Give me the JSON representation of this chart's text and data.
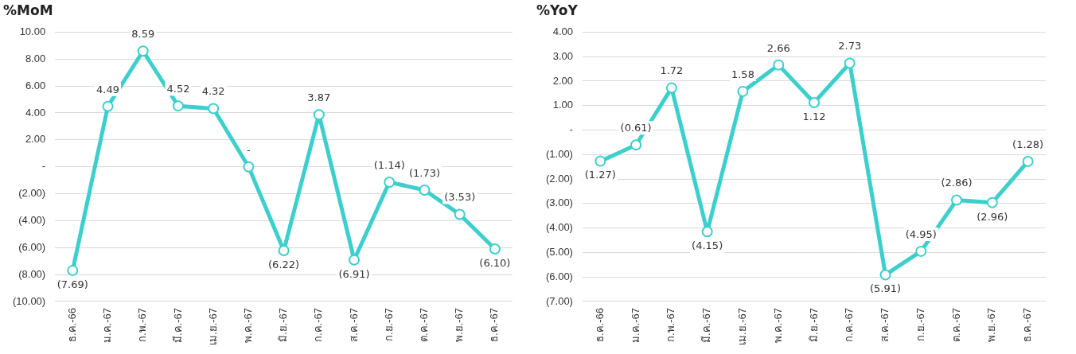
{
  "chart_data": [
    {
      "type": "line",
      "title": "%MoM",
      "categories": [
        "ธ.ค.-66",
        "ม.ค.-67",
        "ก.พ.-67",
        "มี.ค.-67",
        "เม.ย.-67",
        "พ.ค.-67",
        "มิ.ย.-67",
        "ก.ค.-67",
        "ส.ค.-67",
        "ก.ย.-67",
        "ต.ค.-67",
        "พ.ย.-67",
        "ธ.ค.-67"
      ],
      "series": [
        {
          "color": "#3ccfcc",
          "values": [
            -7.69,
            4.49,
            8.59,
            4.52,
            4.32,
            0,
            -6.22,
            3.87,
            -6.91,
            -1.14,
            -1.73,
            -3.53,
            -6.1
          ],
          "value_labels": [
            "(7.69)",
            "4.49",
            "8.59",
            "4.52",
            "4.32",
            "-",
            "(6.22)",
            "3.87",
            "(6.91)",
            "(1.14)",
            "(1.73)",
            "(3.53)",
            "(6.10)"
          ]
        }
      ],
      "ylim": [
        -10,
        10
      ],
      "yticks": [
        {
          "value": -10,
          "label": "(10.00)"
        },
        {
          "value": -8,
          "label": "(8.00)"
        },
        {
          "value": -6,
          "label": "(6.00)"
        },
        {
          "value": -4,
          "label": "(4.00)"
        },
        {
          "value": -2,
          "label": "(2.00)"
        },
        {
          "value": 0,
          "label": "-"
        },
        {
          "value": 2,
          "label": "2.00"
        },
        {
          "value": 4,
          "label": "4.00"
        },
        {
          "value": 6,
          "label": "6.00"
        },
        {
          "value": 8,
          "label": "8.00"
        },
        {
          "value": 10,
          "label": "10.00"
        }
      ],
      "grid": "y",
      "legend": false,
      "marker": "circle",
      "line_style": "solid"
    },
    {
      "type": "line",
      "title": "%YoY",
      "categories": [
        "ธ.ค.-66",
        "ม.ค.-67",
        "ก.พ.-67",
        "มี.ค.-67",
        "เม.ย.-67",
        "พ.ค.-67",
        "มิ.ย.-67",
        "ก.ค.-67",
        "ส.ค.-67",
        "ก.ย.-67",
        "ต.ค.-67",
        "พ.ย.-67",
        "ธ.ค.-67"
      ],
      "series": [
        {
          "color": "#3ccfcc",
          "values": [
            -1.27,
            -0.61,
            1.72,
            -4.15,
            1.58,
            2.66,
            1.12,
            2.73,
            -5.91,
            -4.95,
            -2.86,
            -2.96,
            -1.28
          ],
          "value_labels": [
            "(1.27)",
            "(0.61)",
            "1.72",
            "(4.15)",
            "1.58",
            "2.66",
            "1.12",
            "2.73",
            "(5.91)",
            "(4.95)",
            "(2.86)",
            "(2.96)",
            "(1.28)"
          ]
        }
      ],
      "ylim": [
        -7,
        4
      ],
      "yticks": [
        {
          "value": -7,
          "label": "(7.00)"
        },
        {
          "value": -6,
          "label": "(6.00)"
        },
        {
          "value": -5,
          "label": "(5.00)"
        },
        {
          "value": -4,
          "label": "(4.00)"
        },
        {
          "value": -3,
          "label": "(3.00)"
        },
        {
          "value": -2,
          "label": "(2.00)"
        },
        {
          "value": -1,
          "label": "(1.00)"
        },
        {
          "value": 0,
          "label": "-"
        },
        {
          "value": 1,
          "label": "1.00"
        },
        {
          "value": 2,
          "label": "2.00"
        },
        {
          "value": 3,
          "label": "3.00"
        },
        {
          "value": 4,
          "label": "4.00"
        }
      ],
      "grid": "y",
      "legend": false,
      "marker": "circle",
      "line_style": "solid"
    }
  ]
}
